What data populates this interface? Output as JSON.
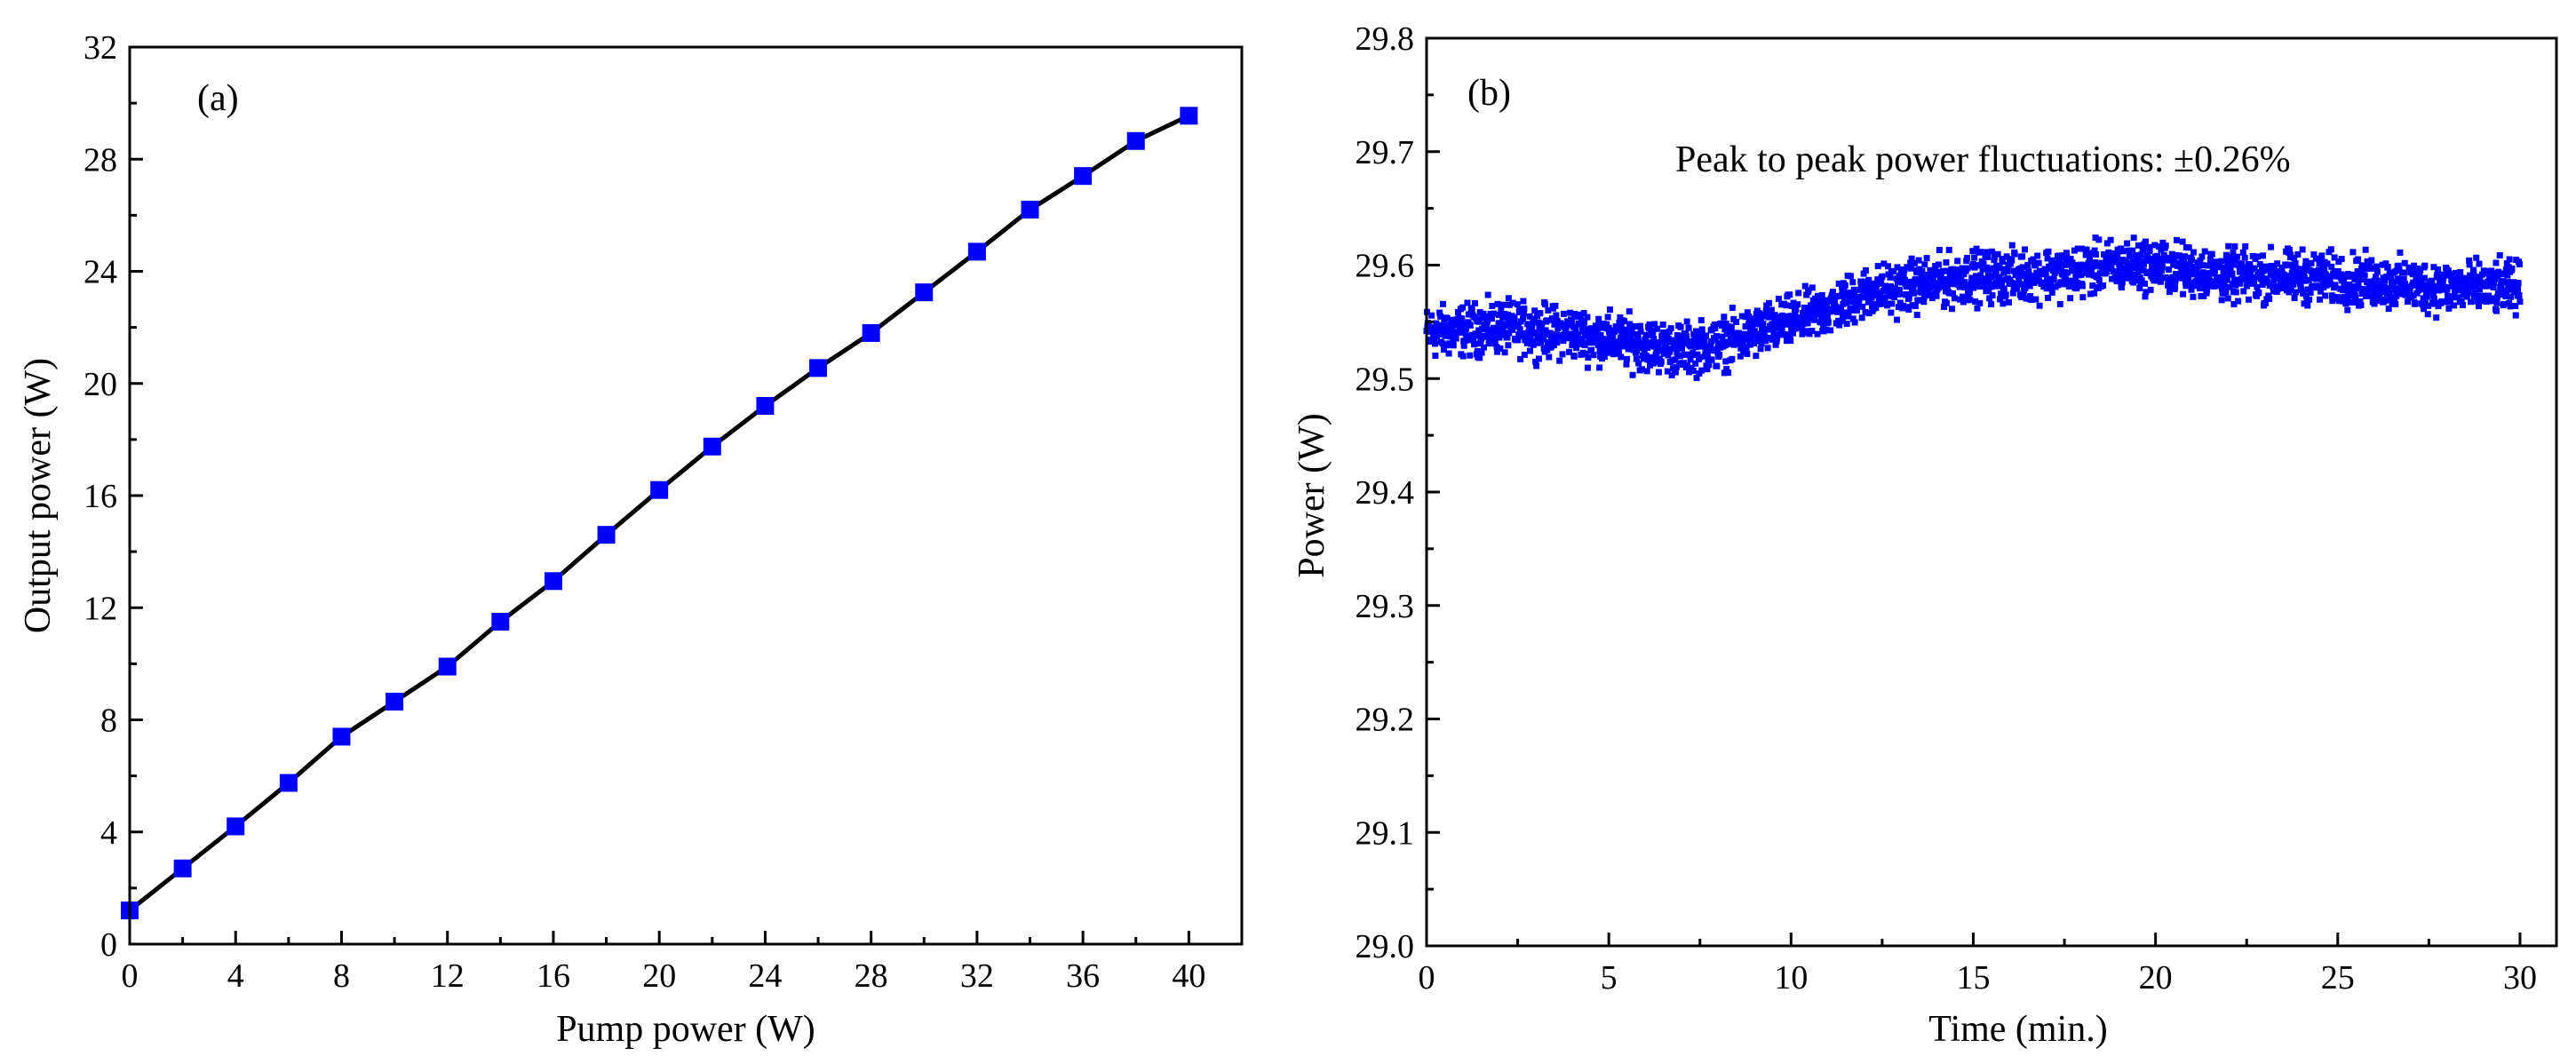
{
  "chart_data": [
    {
      "type": "line",
      "panel_label": "(a)",
      "title": "",
      "xlabel": "Pump power (W)",
      "ylabel": "Output power (W)",
      "xlim": [
        0,
        42
      ],
      "ylim": [
        0,
        32
      ],
      "xticks": [
        0,
        4,
        8,
        12,
        16,
        20,
        24,
        28,
        32,
        36,
        40
      ],
      "yticks": [
        0,
        4,
        8,
        12,
        16,
        20,
        24,
        28,
        32
      ],
      "marker": "square",
      "line": true,
      "series": [
        {
          "name": "Output power",
          "color": "#0000ff",
          "line_color": "#000000",
          "x": [
            0,
            2,
            4,
            6,
            8,
            10,
            12,
            14,
            16,
            18,
            20,
            22,
            24,
            26,
            28,
            30,
            32,
            34,
            36,
            38,
            40
          ],
          "y": [
            1.2,
            2.7,
            4.2,
            5.75,
            7.4,
            8.65,
            9.9,
            11.5,
            12.95,
            14.6,
            16.2,
            17.75,
            19.2,
            20.55,
            21.8,
            23.25,
            24.7,
            26.2,
            27.4,
            28.65,
            29.55
          ]
        }
      ]
    },
    {
      "type": "scatter",
      "panel_label": "(b)",
      "title": "",
      "xlabel": "Time (min.)",
      "ylabel": "Power (W)",
      "xlim": [
        0,
        31
      ],
      "ylim": [
        29.0,
        29.8
      ],
      "xticks": [
        0,
        5,
        10,
        15,
        20,
        25,
        30
      ],
      "yticks": [
        29.0,
        29.1,
        29.2,
        29.3,
        29.4,
        29.5,
        29.6,
        29.7,
        29.8
      ],
      "annotation": "Peak to peak power fluctuations: ±0.26%",
      "marker": "square",
      "series": [
        {
          "name": "Power",
          "color": "#0000ff",
          "mean_trend": {
            "x": [
              0,
              2,
              4,
              6,
              7,
              8,
              9,
              10,
              11,
              12,
              13,
              14,
              15,
              16,
              18,
              19,
              20,
              21,
              22,
              24,
              26,
              28,
              30
            ],
            "y": [
              29.54,
              29.545,
              29.54,
              29.53,
              29.525,
              29.53,
              29.54,
              29.55,
              29.56,
              29.575,
              29.58,
              29.585,
              29.59,
              29.59,
              29.595,
              29.6,
              29.6,
              29.595,
              29.59,
              29.59,
              29.585,
              29.58,
              29.58
            ]
          },
          "band_half_width": 0.03
        }
      ]
    }
  ]
}
